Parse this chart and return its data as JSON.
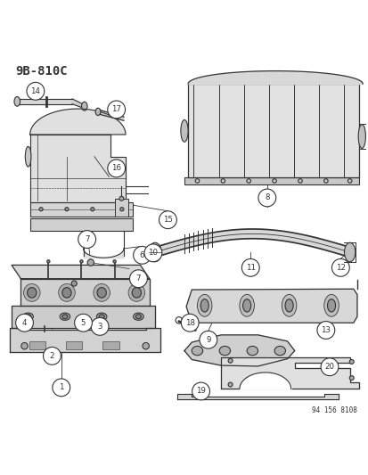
{
  "title": "9B-810C",
  "footer": "94 156 8108",
  "background_color": "#ffffff",
  "line_color": "#333333",
  "figsize": [
    4.14,
    5.33
  ],
  "dpi": 100,
  "callout_data": [
    [
      1,
      0.165,
      0.092
    ],
    [
      2,
      0.14,
      0.178
    ],
    [
      3,
      0.27,
      0.258
    ],
    [
      4,
      0.065,
      0.268
    ],
    [
      5,
      0.225,
      0.268
    ],
    [
      6,
      0.385,
      0.452
    ],
    [
      7,
      0.235,
      0.495
    ],
    [
      7,
      0.375,
      0.388
    ],
    [
      8,
      0.725,
      0.608
    ],
    [
      9,
      0.565,
      0.222
    ],
    [
      10,
      0.415,
      0.458
    ],
    [
      11,
      0.68,
      0.418
    ],
    [
      12,
      0.925,
      0.418
    ],
    [
      13,
      0.885,
      0.248
    ],
    [
      14,
      0.095,
      0.898
    ],
    [
      15,
      0.455,
      0.548
    ],
    [
      16,
      0.315,
      0.688
    ],
    [
      17,
      0.315,
      0.848
    ],
    [
      18,
      0.515,
      0.268
    ],
    [
      19,
      0.545,
      0.082
    ],
    [
      20,
      0.895,
      0.148
    ]
  ]
}
